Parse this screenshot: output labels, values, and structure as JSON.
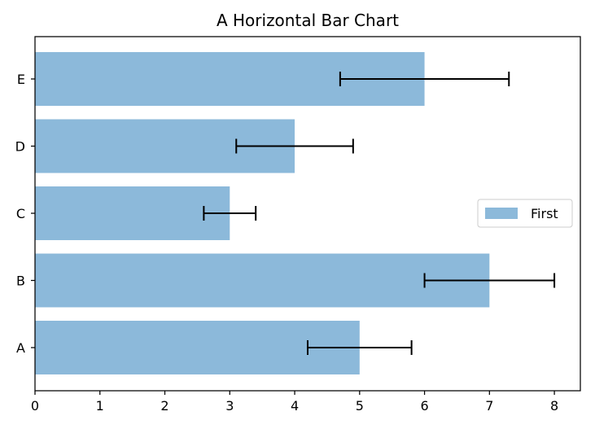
{
  "chart_data": {
    "type": "bar",
    "orientation": "horizontal",
    "title": "A Horizontal Bar Chart",
    "xlabel": "",
    "ylabel": "",
    "categories": [
      "A",
      "B",
      "C",
      "D",
      "E"
    ],
    "series": [
      {
        "name": "First",
        "values": [
          5,
          7,
          3,
          4,
          6
        ],
        "errors": [
          0.8,
          1.0,
          0.4,
          0.9,
          1.3
        ],
        "color": "#8cb9da"
      }
    ],
    "xlim": [
      0,
      8.4
    ],
    "xticks": [
      0,
      1,
      2,
      3,
      4,
      5,
      6,
      7,
      8
    ],
    "grid": false,
    "legend_position": "center-right",
    "error_bar_color": "#000000"
  }
}
